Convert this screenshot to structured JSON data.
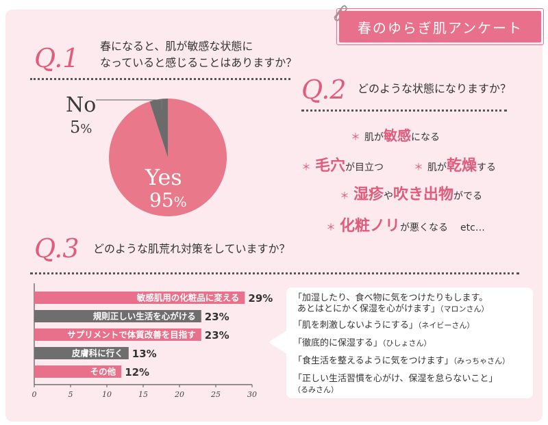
{
  "header": {
    "tag_label": "春のゆらぎ肌アンケート"
  },
  "q1": {
    "num": "Q.1",
    "line1": "春になると、肌が敏感な状態に",
    "line2": "なっていると感じることはありますか？"
  },
  "q2": {
    "num": "Q.2",
    "question": "どのような状態になりますか？",
    "items": [
      {
        "ast": "＊",
        "pre": "肌が",
        "em": "敏感",
        "post": "になる"
      },
      {
        "ast": "＊",
        "pre": "",
        "em": "毛穴",
        "post": "が目立つ"
      },
      {
        "ast": "＊",
        "pre": "肌が",
        "em": "乾燥",
        "post": "する"
      },
      {
        "ast": "＊",
        "pre": "",
        "em": "湿疹",
        "mid": "や",
        "em2": "吹き出物",
        "post": "がでる"
      },
      {
        "ast": "＊",
        "pre": "",
        "em": "化粧ノリ",
        "post": "が悪くなる",
        "etc": "etc…"
      }
    ]
  },
  "q3": {
    "num": "Q.3",
    "question": "どのような肌荒れ対策をしていますか？"
  },
  "pie": {
    "no_label": "No",
    "no_value": "5",
    "yes_label": "Yes",
    "yes_value": "95",
    "unit": "%"
  },
  "chart_data": [
    {
      "type": "pie",
      "categories": [
        "Yes",
        "No"
      ],
      "values": [
        95,
        5
      ],
      "unit": "%",
      "colors": [
        "#e8788a",
        "#6b6b6b"
      ]
    },
    {
      "type": "bar",
      "orientation": "horizontal",
      "categories": [
        "敏感肌用の化粧品に変える",
        "規則正しい生活を心がける",
        "サプリメントで体質改善を目指す",
        "皮膚科に行く",
        "その他"
      ],
      "values": [
        29,
        23,
        23,
        13,
        12
      ],
      "value_labels": [
        "29%",
        "23%",
        "23%",
        "13%",
        "12%"
      ],
      "colors": [
        "#e8708a",
        "#6e6e6e",
        "#e8708a",
        "#6e6e6e",
        "#e8708a"
      ],
      "xlim": [
        0,
        30
      ],
      "xticks": [
        "0",
        "5",
        "10",
        "15",
        "20",
        "25",
        "30"
      ]
    }
  ],
  "comments": [
    {
      "text": "「加湿したり、食べ物に気をつけたりもします。",
      "text2": "あとはとにかく保湿を心がけます」",
      "who": "（マロンさん）"
    },
    {
      "text": "「肌を刺激しないようにする」",
      "who": "（ネイビーさん）"
    },
    {
      "text": "「徹底的に保湿する」",
      "who": "（ひしょさん）"
    },
    {
      "text": "「食生活を整えるように気をつけます」",
      "who": "（みっちゃさん）"
    },
    {
      "text": "「正しい生活習慣を心がけ、保湿を怠らないこと」",
      "who": "（るみさん）"
    }
  ]
}
